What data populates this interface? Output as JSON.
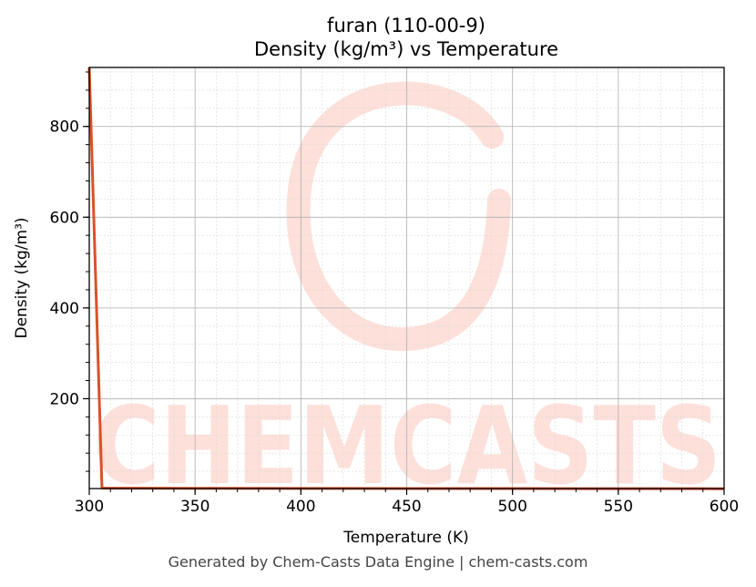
{
  "chart_data": {
    "type": "line",
    "title": "furan (110-00-9)",
    "subtitle": "Density (kg/m³) vs Temperature",
    "xlabel": "Temperature (K)",
    "ylabel": "Density (kg/m³)",
    "xlim": [
      300,
      600
    ],
    "ylim": [
      2,
      930
    ],
    "xticks": [
      300,
      350,
      400,
      450,
      500,
      550,
      600
    ],
    "yticks": [
      200,
      400,
      600,
      800
    ],
    "grid": true,
    "color": "#d9522a",
    "series": [
      {
        "x": [
          300,
          306,
          307,
          325,
          350,
          400,
          450,
          500,
          550,
          600
        ],
        "y": [
          930,
          3.2,
          2.9,
          2.8,
          2.6,
          2.3,
          2.1,
          1.9,
          1.7,
          1.6
        ]
      }
    ]
  },
  "watermark": {
    "text": "CHEMCASTS",
    "color": "#fde0da"
  },
  "footer": "Generated by Chem-Casts Data Engine | chem-casts.com"
}
